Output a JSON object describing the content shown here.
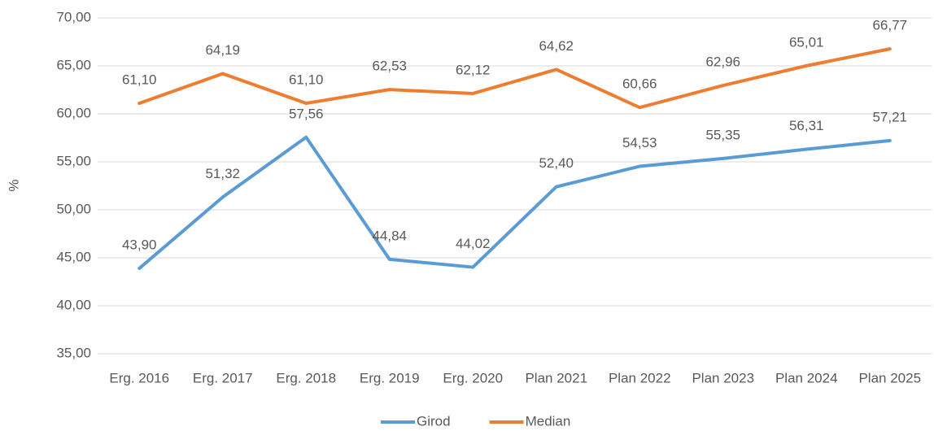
{
  "chart_data": {
    "type": "line",
    "y_label": "%",
    "categories": [
      "Erg. 2016",
      "Erg. 2017",
      "Erg. 2018",
      "Erg. 2019",
      "Erg. 2020",
      "Plan 2021",
      "Plan 2022",
      "Plan 2023",
      "Plan 2024",
      "Plan 2025"
    ],
    "series": [
      {
        "name": "Girod",
        "color": "#5b9bd5",
        "values": [
          43.9,
          51.32,
          57.56,
          44.84,
          44.02,
          52.4,
          54.53,
          55.35,
          56.31,
          57.21
        ],
        "value_labels": [
          "43,90",
          "51,32",
          "57,56",
          "44,84",
          "44,02",
          "52,40",
          "54,53",
          "55,35",
          "56,31",
          "57,21"
        ]
      },
      {
        "name": "Median",
        "color": "#ed7d31",
        "values": [
          61.1,
          64.19,
          61.1,
          62.53,
          62.12,
          64.62,
          60.66,
          62.96,
          65.01,
          66.77
        ],
        "value_labels": [
          "61,10",
          "64,19",
          "61,10",
          "62,53",
          "62,12",
          "64,62",
          "60,66",
          "62,96",
          "65,01",
          "66,77"
        ]
      }
    ],
    "ylim": [
      35,
      70
    ],
    "yticks": [
      {
        "value": 35,
        "label": "35,00"
      },
      {
        "value": 40,
        "label": "40,00"
      },
      {
        "value": 45,
        "label": "45,00"
      },
      {
        "value": 50,
        "label": "50,00"
      },
      {
        "value": 55,
        "label": "55,00"
      },
      {
        "value": 60,
        "label": "60,00"
      },
      {
        "value": 65,
        "label": "65,00"
      },
      {
        "value": 70,
        "label": "70,00"
      }
    ],
    "grid": true,
    "legend": "bottom"
  }
}
